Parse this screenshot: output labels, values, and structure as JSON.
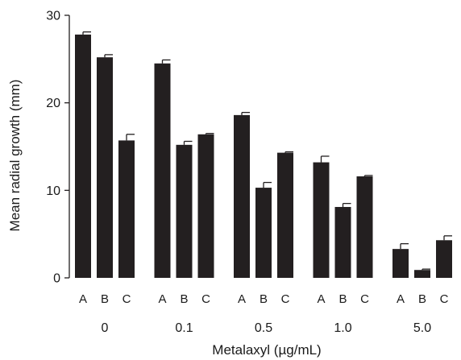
{
  "chart_data": {
    "type": "bar",
    "title": "",
    "xlabel": "Metalaxyl (µg/mL)",
    "ylabel": "Mean radial growth (mm)",
    "ylim": [
      0,
      30
    ],
    "yticks": [
      "0",
      "10",
      "20",
      "30"
    ],
    "categories": [
      "0",
      "0.1",
      "0.5",
      "1.0",
      "5.0"
    ],
    "subcategories": [
      "A",
      "B",
      "C"
    ],
    "bar_color": "#231f20",
    "groups": [
      {
        "label": "0",
        "values": [
          27.8,
          25.2,
          15.7
        ],
        "errors": [
          0.3,
          0.3,
          0.7
        ]
      },
      {
        "label": "0.1",
        "values": [
          24.5,
          15.2,
          16.4
        ],
        "errors": [
          0.4,
          0.4,
          0.1
        ]
      },
      {
        "label": "0.5",
        "values": [
          18.6,
          10.3,
          14.3
        ],
        "errors": [
          0.3,
          0.6,
          0.1
        ]
      },
      {
        "label": "1.0",
        "values": [
          13.2,
          8.1,
          11.6
        ],
        "errors": [
          0.7,
          0.4,
          0.1
        ]
      },
      {
        "label": "5.0",
        "values": [
          3.3,
          0.9,
          4.3
        ],
        "errors": [
          0.6,
          0.1,
          0.5
        ]
      }
    ]
  }
}
